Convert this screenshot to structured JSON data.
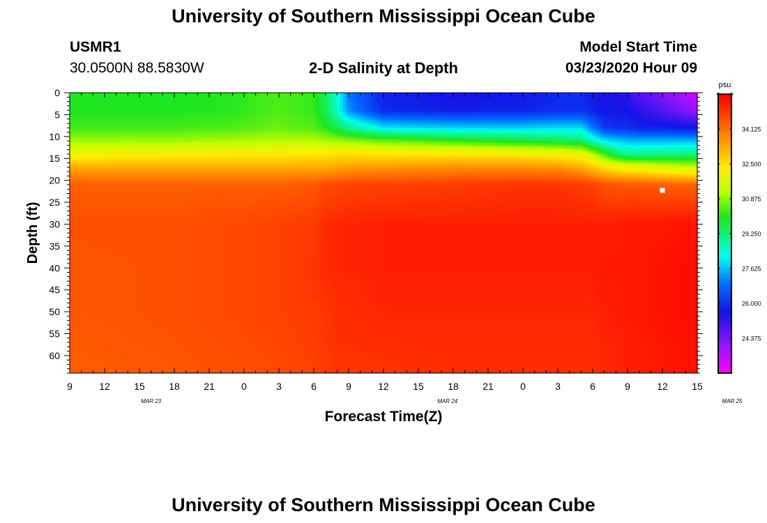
{
  "page": {
    "title_top": "University of Southern Mississippi Ocean Cube",
    "title_bottom": "University of Southern Mississippi Ocean Cube",
    "station_id": "USMR1",
    "station_coords": "30.0500N 88.5830W",
    "plot_title": "2-D Salinity at Depth",
    "model_start_label": "Model Start Time",
    "model_start_value": "03/23/2020 Hour 09"
  },
  "chart_data": {
    "type": "heatmap",
    "title": "2-D Salinity at Depth",
    "xlabel": "Forecast Time(Z)",
    "ylabel": "Depth (ft)",
    "x_tick_labels": [
      "9",
      "12",
      "15",
      "18",
      "21",
      "0",
      "3",
      "6",
      "9",
      "12",
      "15",
      "18",
      "21",
      "0",
      "3",
      "6",
      "9",
      "12",
      "15"
    ],
    "x_range_hours": [
      9,
      63
    ],
    "date_labels": [
      {
        "label": "MAR 23",
        "hour": 16
      },
      {
        "label": "MAR 24",
        "hour": 41.5
      },
      {
        "label": "MAR 25",
        "hour": 66
      }
    ],
    "y_ticks": [
      0,
      5,
      10,
      15,
      20,
      25,
      30,
      35,
      40,
      45,
      50,
      55,
      60
    ],
    "ylim": [
      0,
      64
    ],
    "colorbar": {
      "unit": "psu",
      "min": 22.75,
      "max": 35.75,
      "tick_labels": [
        "34.125",
        "32.500",
        "30.875",
        "29.250",
        "27.625",
        "26.000",
        "24.375"
      ],
      "tick_values": [
        34.125,
        32.5,
        30.875,
        29.25,
        27.625,
        26.0,
        24.375
      ]
    },
    "grid": false,
    "marker": {
      "x_hour": 60,
      "depth_ft": 22.3,
      "color": "#ffffff"
    },
    "depth_grid_ft": [
      0,
      4,
      8,
      11,
      14,
      17,
      21,
      30,
      40,
      50,
      64
    ],
    "time_grid_hours": [
      9,
      18,
      23,
      27,
      30,
      31,
      32,
      33,
      36,
      42,
      48,
      51,
      53,
      54,
      55,
      56,
      57,
      58,
      60,
      63
    ],
    "salinity_psu": [
      [
        30.0,
        30.0,
        30.1,
        30.4,
        30.2,
        29.5,
        28.5,
        27.0,
        25.8,
        25.6,
        25.7,
        25.9,
        26.0,
        25.7,
        25.6,
        25.5,
        25.3,
        24.8,
        24.3,
        23.3
      ],
      [
        30.0,
        30.0,
        30.1,
        30.4,
        30.2,
        29.6,
        28.5,
        27.2,
        25.9,
        25.7,
        25.8,
        26.0,
        26.0,
        25.8,
        25.6,
        25.6,
        25.6,
        25.3,
        24.8,
        24.0
      ],
      [
        30.3,
        30.3,
        30.4,
        30.6,
        30.4,
        30.1,
        29.6,
        29.0,
        28.0,
        27.8,
        27.8,
        27.9,
        27.9,
        27.0,
        26.2,
        26.0,
        26.0,
        25.8,
        25.8,
        25.6
      ],
      [
        31.0,
        31.0,
        31.1,
        31.2,
        31.2,
        31.1,
        31.0,
        30.9,
        30.6,
        30.2,
        29.8,
        29.6,
        29.4,
        28.6,
        28.0,
        27.8,
        27.6,
        27.6,
        27.6,
        27.6
      ],
      [
        32.0,
        32.2,
        32.3,
        32.3,
        32.4,
        32.4,
        32.5,
        32.5,
        32.4,
        32.4,
        32.3,
        32.1,
        31.9,
        31.2,
        30.3,
        29.4,
        29.0,
        29.0,
        29.1,
        29.2
      ],
      [
        33.3,
        33.3,
        33.3,
        33.3,
        33.3,
        33.3,
        33.4,
        33.5,
        33.6,
        33.7,
        33.7,
        33.6,
        33.3,
        32.9,
        32.5,
        32.2,
        32.0,
        31.9,
        31.6,
        31.3
      ],
      [
        34.4,
        34.4,
        34.4,
        34.4,
        34.5,
        34.7,
        34.7,
        34.8,
        34.8,
        34.9,
        35.0,
        35.0,
        34.9,
        34.8,
        34.6,
        34.5,
        34.5,
        34.5,
        34.4,
        34.3
      ],
      [
        34.6,
        34.6,
        34.7,
        34.8,
        34.9,
        35.1,
        35.2,
        35.2,
        35.3,
        35.3,
        35.3,
        35.3,
        35.3,
        35.3,
        35.3,
        35.3,
        35.4,
        35.4,
        35.4,
        35.5
      ],
      [
        34.5,
        34.6,
        34.7,
        34.8,
        35.0,
        35.1,
        35.2,
        35.2,
        35.3,
        35.3,
        35.3,
        35.3,
        35.3,
        35.3,
        35.4,
        35.4,
        35.4,
        35.4,
        35.5,
        35.6
      ],
      [
        34.5,
        34.6,
        34.7,
        34.8,
        34.9,
        35.0,
        35.1,
        35.1,
        35.2,
        35.2,
        35.2,
        35.2,
        35.2,
        35.2,
        35.3,
        35.3,
        35.4,
        35.4,
        35.5,
        35.6
      ],
      [
        34.4,
        34.5,
        34.6,
        34.7,
        34.8,
        34.9,
        35.0,
        35.0,
        35.0,
        35.1,
        35.1,
        35.1,
        35.1,
        35.1,
        35.2,
        35.2,
        35.3,
        35.3,
        35.4,
        35.5
      ]
    ]
  }
}
